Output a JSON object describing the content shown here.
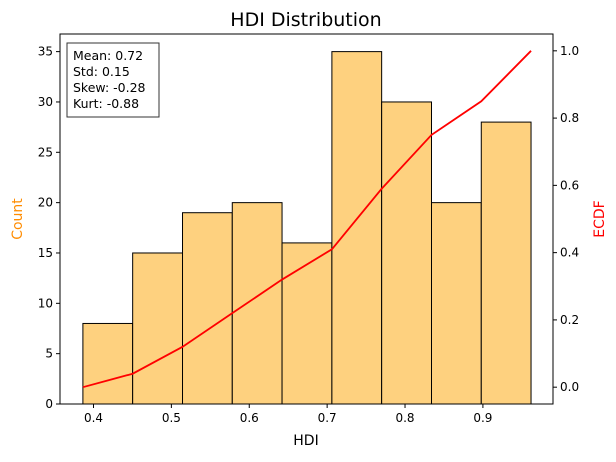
{
  "chart_data": {
    "type": "bar",
    "title": "HDI Distribution",
    "xlabel": "HDI",
    "ylabel": "Count",
    "y2label": "ECDF",
    "xlim": [
      0.357,
      0.99
    ],
    "ylim": [
      0,
      36.75
    ],
    "y2lim": [
      -0.05,
      1.05
    ],
    "xticks": [
      "0.4",
      "0.5",
      "0.6",
      "0.7",
      "0.8",
      "0.9"
    ],
    "xtick_values": [
      0.4,
      0.5,
      0.6,
      0.7,
      0.8,
      0.9
    ],
    "yticks": [
      "0",
      "5",
      "10",
      "15",
      "20",
      "25",
      "30",
      "35"
    ],
    "ytick_values": [
      0,
      5,
      10,
      15,
      20,
      25,
      30,
      35
    ],
    "y2ticks": [
      "0.0",
      "0.2",
      "0.4",
      "0.6",
      "0.8",
      "1.0"
    ],
    "y2tick_values": [
      0,
      0.2,
      0.4,
      0.6,
      0.8,
      1.0
    ],
    "bin_edges": [
      0.3864,
      0.4503,
      0.5143,
      0.5782,
      0.6421,
      0.7061,
      0.77,
      0.834,
      0.8979,
      0.9618
    ],
    "values": [
      8,
      15,
      19,
      20,
      16,
      35,
      30,
      20,
      28
    ],
    "ecdf": {
      "x": [
        0.3864,
        0.4503,
        0.5143,
        0.5782,
        0.6421,
        0.7061,
        0.77,
        0.834,
        0.8979,
        0.9618
      ],
      "y": [
        0.0,
        0.04,
        0.12,
        0.22,
        0.32,
        0.41,
        0.59,
        0.75,
        0.85,
        1.0
      ]
    },
    "stats_box": [
      "Mean: 0.72",
      "Std: 0.15",
      "Skew: -0.28",
      "Kurt: -0.88"
    ],
    "grid": false,
    "colors": {
      "bar_fill": "#fed17f",
      "bar_edge": "#000000",
      "ecdf_line": "#ff0000",
      "ylabel": "#ff8c00",
      "y2label": "#ff0000"
    }
  }
}
